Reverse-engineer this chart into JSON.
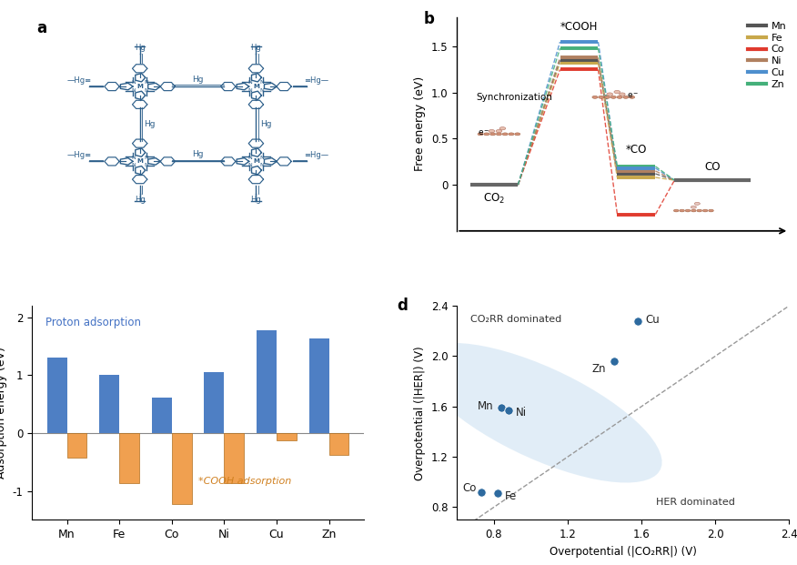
{
  "panel_b": {
    "metals": [
      "Mn",
      "Fe",
      "Co",
      "Ni",
      "Cu",
      "Zn"
    ],
    "colors": [
      "#555555",
      "#c8a84b",
      "#e03b2e",
      "#b08060",
      "#4e8fce",
      "#45b07a"
    ],
    "co2_energy": 0.0,
    "cooh_energies": [
      1.35,
      1.32,
      1.25,
      1.38,
      1.55,
      1.48
    ],
    "co_energies": [
      0.12,
      0.08,
      -0.32,
      0.15,
      0.18,
      0.2
    ],
    "co_final": 0.05,
    "ylabel_b": "Free energy (eV)",
    "yticks_b": [
      0.0,
      0.5,
      1.0,
      1.5
    ]
  },
  "panel_c": {
    "categories": [
      "Mn",
      "Fe",
      "Co",
      "Ni",
      "Cu",
      "Zn"
    ],
    "proton_vals": [
      1.3,
      1.0,
      0.62,
      1.05,
      1.78,
      1.63
    ],
    "cooh_vals": [
      -0.42,
      -0.87,
      -1.22,
      -0.87,
      -0.12,
      -0.38
    ],
    "bar_color_blue": "#4e7fc4",
    "bar_color_orange": "#f0a050",
    "ylabel_c": "Adsorption energy (eV)",
    "label_proton": "Proton adsorption",
    "label_cooh": "*COOH adsorption",
    "ylim_c": [
      -1.5,
      2.2
    ]
  },
  "panel_d": {
    "metals": [
      "Co",
      "Fe",
      "Mn",
      "Ni",
      "Zn",
      "Cu"
    ],
    "co2rr_x": [
      0.73,
      0.82,
      0.84,
      0.88,
      1.45,
      1.58
    ],
    "her_y": [
      0.92,
      0.91,
      1.59,
      1.57,
      1.96,
      2.28
    ],
    "dot_color": "#2d6a9f",
    "ellipse_color": "#c5ddf0",
    "xlabel_d": "Overpotential (|CO₂RR|) (V)",
    "ylabel_d": "Overpotential (|HER|) (V)",
    "xlim_d": [
      0.6,
      2.4
    ],
    "ylim_d": [
      0.7,
      2.4
    ],
    "xticks_d": [
      0.8,
      1.2,
      1.6,
      2.0,
      2.4
    ],
    "yticks_d": [
      0.8,
      1.2,
      1.6,
      2.0,
      2.4
    ],
    "label_co2rr": "CO₂RR dominated",
    "label_her": "HER dominated"
  },
  "legend_b": {
    "metals": [
      "Mn",
      "Fe",
      "Co",
      "Ni",
      "Cu",
      "Zn"
    ],
    "colors": [
      "#555555",
      "#c8a84b",
      "#e03b2e",
      "#b08060",
      "#4e8fce",
      "#45b07a"
    ]
  },
  "porp_color": "#2d5f8a"
}
